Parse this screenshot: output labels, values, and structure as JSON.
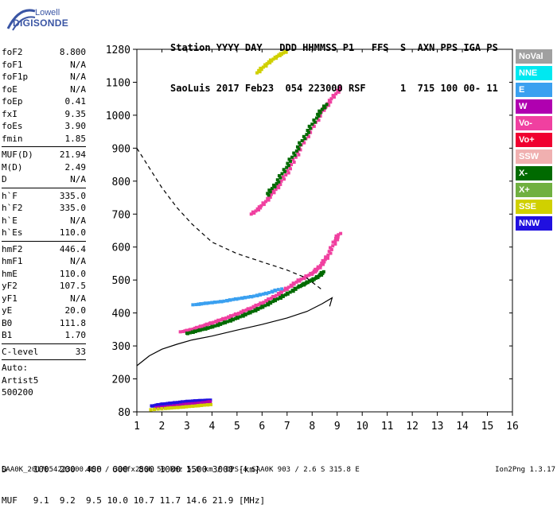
{
  "logo": {
    "line1": "Lowell",
    "line2": "DIGISONDE"
  },
  "header": {
    "row1": "Station YYYY DAY   DDD HHMMSS P1   FFS  S  AXN PPS IGA PS",
    "row2": "SaoLuis 2017 Feb23  054 223000 RSF      1  715 100 00- 11"
  },
  "params": {
    "group1": [
      {
        "label": "foF2",
        "value": "8.800"
      },
      {
        "label": "foF1",
        "value": "N/A"
      },
      {
        "label": "foF1p",
        "value": "N/A"
      },
      {
        "label": "foE",
        "value": "N/A"
      },
      {
        "label": "foEp",
        "value": "0.41"
      },
      {
        "label": "fxI",
        "value": "9.35"
      },
      {
        "label": "foEs",
        "value": "3.90"
      },
      {
        "label": "fmin",
        "value": "1.85"
      }
    ],
    "group2": [
      {
        "label": "MUF(D)",
        "value": "21.94"
      },
      {
        "label": "M(D)",
        "value": "2.49"
      },
      {
        "label": "D",
        "value": "N/A"
      }
    ],
    "group3": [
      {
        "label": "h`F",
        "value": "335.0"
      },
      {
        "label": "h`F2",
        "value": "335.0"
      },
      {
        "label": "h`E",
        "value": "N/A"
      },
      {
        "label": "h`Es",
        "value": "110.0"
      }
    ],
    "group4": [
      {
        "label": "hmF2",
        "value": "446.4"
      },
      {
        "label": "hmF1",
        "value": "N/A"
      },
      {
        "label": "hmE",
        "value": "110.0"
      },
      {
        "label": "yF2",
        "value": "107.5"
      },
      {
        "label": "yF1",
        "value": "N/A"
      },
      {
        "label": "yE",
        "value": "20.0"
      },
      {
        "label": "B0",
        "value": "111.8"
      },
      {
        "label": "B1",
        "value": "1.70"
      }
    ],
    "group5": [
      {
        "label": "C-level",
        "value": "33"
      }
    ],
    "auto": [
      "Auto:",
      "Artist5",
      "500200"
    ]
  },
  "legend": [
    {
      "label": "NoVal",
      "color": "#a0a0a0"
    },
    {
      "label": "NNE",
      "color": "#00e8f0"
    },
    {
      "label": "E",
      "color": "#3aa0f0"
    },
    {
      "label": "W",
      "color": "#b000b0"
    },
    {
      "label": "Vo-",
      "color": "#f040a0"
    },
    {
      "label": "Vo+",
      "color": "#f00030"
    },
    {
      "label": "SSW",
      "color": "#f0b0b0"
    },
    {
      "label": "X-",
      "color": "#006a00"
    },
    {
      "label": "X+",
      "color": "#70b040"
    },
    {
      "label": "SSE",
      "color": "#d0d000"
    },
    {
      "label": "NNW",
      "color": "#2010e0"
    }
  ],
  "muf_table": {
    "row1": "D     100  200  400  600  800 1000 1500 3000 [km]",
    "row2": "MUF   9.1  9.2  9.5 10.0 10.7 11.7 14.6 21.9 [MHz]"
  },
  "footer": {
    "left": "SAA0K_2017054223000.RSF / 300fx256h 50 kHz 5.0 km / DPS-4 SAA0K 903 / 2.6 S 315.8 E",
    "right": "Ion2Png 1.3.17"
  },
  "chart_data": {
    "type": "scatter",
    "x_ticks": [
      "1",
      "2",
      "3",
      "4",
      "5",
      "6",
      "7",
      "8",
      "9",
      "10",
      "11",
      "12",
      "13",
      "14",
      "15",
      "16"
    ],
    "y_ticks": [
      "80",
      "200",
      "300",
      "400",
      "500",
      "600",
      "700",
      "800",
      "900",
      "1000",
      "1100",
      "1280"
    ],
    "xlim": [
      1,
      16
    ],
    "ylim": [
      80,
      1280
    ],
    "traces": [
      {
        "color": "#f040a0",
        "points": [
          [
            2.8,
            338
          ],
          [
            3.2,
            345
          ],
          [
            3.6,
            355
          ],
          [
            4.0,
            365
          ],
          [
            4.5,
            378
          ],
          [
            5.0,
            392
          ],
          [
            5.5,
            408
          ],
          [
            6.0,
            425
          ],
          [
            6.5,
            445
          ],
          [
            7.0,
            470
          ],
          [
            7.5,
            495
          ],
          [
            8.0,
            515
          ],
          [
            8.3,
            535
          ],
          [
            8.6,
            565
          ],
          [
            8.9,
            610
          ],
          [
            9.1,
            640
          ]
        ]
      },
      {
        "color": "#006a00",
        "points": [
          [
            3.0,
            335
          ],
          [
            3.5,
            345
          ],
          [
            4.0,
            355
          ],
          [
            4.5,
            368
          ],
          [
            5.0,
            382
          ],
          [
            5.5,
            398
          ],
          [
            6.0,
            415
          ],
          [
            6.5,
            435
          ],
          [
            7.0,
            455
          ],
          [
            7.5,
            478
          ],
          [
            7.8,
            490
          ],
          [
            8.2,
            505
          ],
          [
            8.5,
            525
          ]
        ]
      },
      {
        "color": "#f040a0",
        "points": [
          [
            5.6,
            700
          ],
          [
            6.0,
            725
          ],
          [
            6.4,
            760
          ],
          [
            6.8,
            800
          ],
          [
            7.2,
            850
          ],
          [
            7.6,
            910
          ],
          [
            8.0,
            960
          ],
          [
            8.4,
            1010
          ],
          [
            8.8,
            1050
          ],
          [
            9.2,
            1090
          ]
        ]
      },
      {
        "color": "#006a00",
        "points": [
          [
            6.2,
            760
          ],
          [
            6.6,
            800
          ],
          [
            7.0,
            850
          ],
          [
            7.4,
            900
          ],
          [
            7.8,
            950
          ],
          [
            8.2,
            1000
          ],
          [
            8.6,
            1040
          ]
        ]
      },
      {
        "color": "#d0d000",
        "points": [
          [
            5.8,
            1160
          ],
          [
            6.2,
            1210
          ],
          [
            6.6,
            1250
          ],
          [
            7.0,
            1280
          ]
        ]
      },
      {
        "color": "#3aa0f0",
        "points": [
          [
            3.3,
            420
          ],
          [
            3.8,
            425
          ],
          [
            4.4,
            430
          ],
          [
            5.0,
            438
          ],
          [
            5.6,
            445
          ],
          [
            6.2,
            455
          ],
          [
            6.8,
            470
          ]
        ]
      },
      {
        "color": "#2010e0",
        "points": [
          [
            1.6,
            98
          ],
          [
            2.0,
            105
          ],
          [
            2.5,
            110
          ],
          [
            3.0,
            115
          ],
          [
            3.5,
            118
          ],
          [
            4.0,
            120
          ]
        ]
      },
      {
        "color": "#b000b0",
        "points": [
          [
            1.8,
            95
          ],
          [
            2.4,
            100
          ],
          [
            3.0,
            108
          ],
          [
            3.6,
            112
          ],
          [
            4.0,
            118
          ]
        ]
      },
      {
        "color": "#d0d000",
        "points": [
          [
            1.5,
            90
          ],
          [
            2.2,
            96
          ],
          [
            2.8,
            100
          ],
          [
            3.4,
            105
          ],
          [
            4.0,
            110
          ]
        ]
      }
    ],
    "profile_solid": [
      [
        1,
        240
      ],
      [
        1.5,
        270
      ],
      [
        2.0,
        290
      ],
      [
        2.6,
        305
      ],
      [
        3.2,
        318
      ],
      [
        4.0,
        330
      ],
      [
        5.0,
        348
      ],
      [
        6.0,
        365
      ],
      [
        7.0,
        385
      ],
      [
        7.8,
        405
      ],
      [
        8.4,
        428
      ],
      [
        8.8,
        446
      ],
      [
        8.7,
        420
      ]
    ],
    "profile_dashed": [
      [
        1,
        900
      ],
      [
        1.5,
        840
      ],
      [
        2.0,
        780
      ],
      [
        2.6,
        720
      ],
      [
        3.2,
        670
      ],
      [
        4.0,
        615
      ],
      [
        5.0,
        580
      ],
      [
        6.0,
        555
      ],
      [
        7.0,
        530
      ],
      [
        7.8,
        505
      ],
      [
        8.4,
        470
      ]
    ]
  }
}
